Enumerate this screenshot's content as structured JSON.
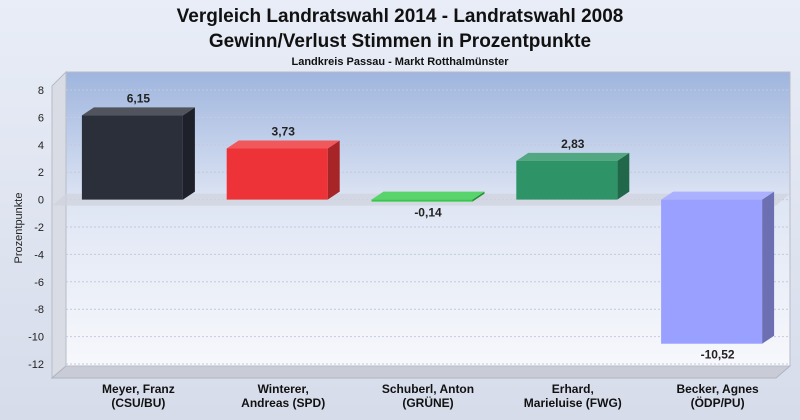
{
  "chart_data": {
    "type": "bar",
    "title": "Vergleich Landratswahl 2014 - Landratswahl 2008",
    "subtitle": "Gewinn/Verlust Stimmen in Prozentpunkte",
    "subtitle2": "Landkreis Passau - Markt Rotthalmünster",
    "ylabel": "Prozentpunkte",
    "xlabel": "",
    "ylim": [
      -12,
      8
    ],
    "yticks": [
      8,
      6,
      4,
      2,
      0,
      -2,
      -4,
      -6,
      -8,
      -10,
      -12
    ],
    "grid": true,
    "categories": [
      [
        "Meyer, Franz",
        "(CSU/BU)"
      ],
      [
        "Winterer,",
        "Andreas (SPD)"
      ],
      [
        "Schuberl, Anton",
        "(GRÜNE)"
      ],
      [
        "Erhard,",
        "Marieluise (FWG)"
      ],
      [
        "Becker, Agnes",
        "(ÖDP/PU)"
      ]
    ],
    "values": [
      6.15,
      3.73,
      -0.14,
      2.83,
      -10.52
    ],
    "value_labels": [
      "6,15",
      "3,73",
      "-0,14",
      "2,83",
      "-10,52"
    ],
    "colors": [
      "#2b2f3a",
      "#ee3338",
      "#35c94a",
      "#2e9468",
      "#9aa0ff"
    ]
  }
}
